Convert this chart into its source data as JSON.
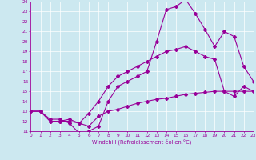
{
  "xlabel": "Windchill (Refroidissement éolien,°C)",
  "bg_color": "#cce8f0",
  "line_color": "#990099",
  "grid_color": "#ffffff",
  "xmin": 0,
  "xmax": 23,
  "ymin": 11,
  "ymax": 24,
  "line1_x": [
    0,
    1,
    2,
    3,
    4,
    5,
    6,
    7,
    8,
    9,
    10,
    11,
    12,
    13,
    14,
    15,
    16,
    17,
    18,
    19,
    20,
    21,
    22,
    23
  ],
  "line1_y": [
    13,
    13,
    12.2,
    12.2,
    11.8,
    10.8,
    11.0,
    11.5,
    14.0,
    15.5,
    16.0,
    16.5,
    17.0,
    20.0,
    23.2,
    23.5,
    24.2,
    22.8,
    21.2,
    19.5,
    21.0,
    20.5,
    17.5,
    16.0
  ],
  "line2_x": [
    0,
    1,
    2,
    3,
    4,
    5,
    6,
    7,
    8,
    9,
    10,
    11,
    12,
    13,
    14,
    15,
    16,
    17,
    18,
    19,
    20,
    21,
    22,
    23
  ],
  "line2_y": [
    13,
    13,
    12,
    12,
    12,
    11.8,
    12.8,
    14.0,
    15.5,
    16.5,
    17.0,
    17.5,
    18.0,
    18.5,
    19.0,
    19.2,
    19.5,
    19.0,
    18.5,
    18.2,
    15.0,
    14.5,
    15.5,
    15.0
  ],
  "line3_x": [
    0,
    1,
    2,
    3,
    4,
    5,
    6,
    7,
    8,
    9,
    10,
    11,
    12,
    13,
    14,
    15,
    16,
    17,
    18,
    19,
    20,
    21,
    22,
    23
  ],
  "line3_y": [
    13,
    13,
    12,
    12,
    12.2,
    11.8,
    11.5,
    12.5,
    13.0,
    13.2,
    13.5,
    13.8,
    14.0,
    14.2,
    14.3,
    14.5,
    14.7,
    14.8,
    14.9,
    15.0,
    15.0,
    15.0,
    15.0,
    15.0
  ],
  "marker_size": 2.0,
  "linewidth": 0.8,
  "tick_fontsize": 4.2,
  "xlabel_fontsize": 4.8
}
